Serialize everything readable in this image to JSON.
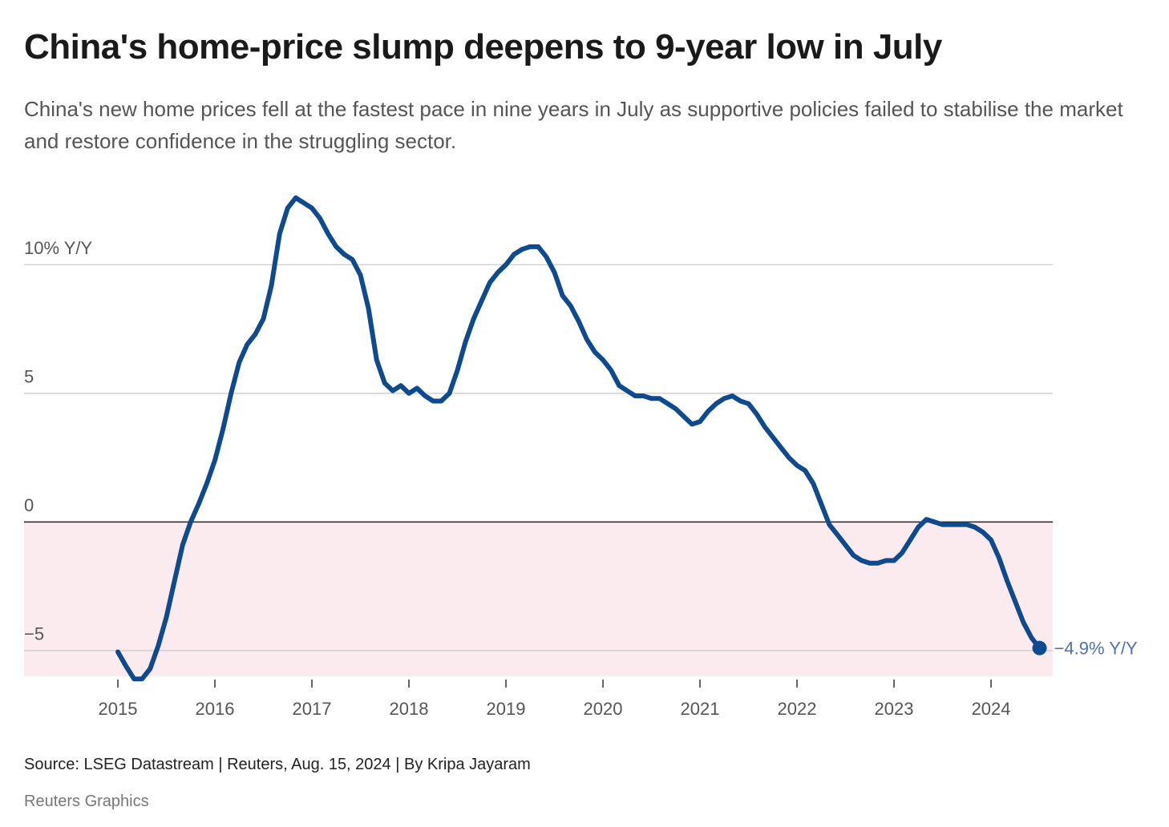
{
  "chart_data": {
    "type": "line",
    "title": "China's home-price slump deepens to 9-year low in July",
    "subtitle": "China's new home prices fell at the fastest pace in nine years in July as supportive policies failed to stabilise the market and restore confidence in the struggling sector.",
    "source": "Source: LSEG Datastream | Reuters, Aug. 15, 2024 | By Kripa Jayaram",
    "credit": "Reuters Graphics",
    "color": "#0f4a8f",
    "label_color": "#4f74a8",
    "negative_fill": "#fcebee",
    "zero_line_color": "#222222",
    "grid": true,
    "xlim": [
      2014.033,
      2024.636
    ],
    "ylim": [
      -6,
      13
    ],
    "xticks": [
      2015,
      2016,
      2017,
      2018,
      2019,
      2020,
      2021,
      2022,
      2023,
      2024
    ],
    "yticks": [
      {
        "value": -5,
        "label": "−5"
      },
      0,
      5,
      {
        "value": 10,
        "label": "10% Y/Y"
      }
    ],
    "x": [
      2015,
      2015.083,
      2015.167,
      2015.25,
      2015.333,
      2015.417,
      2015.5,
      2015.583,
      2015.667,
      2015.75,
      2015.833,
      2015.917,
      2016,
      2016.083,
      2016.167,
      2016.25,
      2016.333,
      2016.417,
      2016.5,
      2016.583,
      2016.667,
      2016.75,
      2016.833,
      2016.917,
      2017,
      2017.083,
      2017.167,
      2017.25,
      2017.333,
      2017.417,
      2017.5,
      2017.583,
      2017.667,
      2017.75,
      2017.833,
      2017.917,
      2018,
      2018.083,
      2018.167,
      2018.25,
      2018.333,
      2018.417,
      2018.5,
      2018.583,
      2018.667,
      2018.75,
      2018.833,
      2018.917,
      2019,
      2019.083,
      2019.167,
      2019.25,
      2019.333,
      2019.417,
      2019.5,
      2019.583,
      2019.667,
      2019.75,
      2019.833,
      2019.917,
      2020,
      2020.083,
      2020.167,
      2020.25,
      2020.333,
      2020.417,
      2020.5,
      2020.583,
      2020.667,
      2020.75,
      2020.833,
      2020.917,
      2021,
      2021.083,
      2021.167,
      2021.25,
      2021.333,
      2021.417,
      2021.5,
      2021.583,
      2021.667,
      2021.75,
      2021.833,
      2021.917,
      2022,
      2022.083,
      2022.167,
      2022.25,
      2022.333,
      2022.417,
      2022.5,
      2022.583,
      2022.667,
      2022.75,
      2022.833,
      2022.917,
      2023,
      2023.083,
      2023.167,
      2023.25,
      2023.333,
      2023.417,
      2023.5,
      2023.583,
      2023.667,
      2023.75,
      2023.833,
      2023.917,
      2024,
      2024.083,
      2024.167,
      2024.25,
      2024.333,
      2024.417,
      2024.5
    ],
    "values": [
      -5.05,
      -5.6,
      -6.1,
      -6.1,
      -5.7,
      -4.8,
      -3.7,
      -2.3,
      -0.9,
      0.0,
      0.7,
      1.5,
      2.4,
      3.6,
      5.0,
      6.2,
      6.9,
      7.3,
      7.9,
      9.2,
      11.2,
      12.2,
      12.6,
      12.4,
      12.2,
      11.8,
      11.2,
      10.7,
      10.4,
      10.2,
      9.6,
      8.3,
      6.3,
      5.4,
      5.1,
      5.3,
      5.0,
      5.2,
      4.9,
      4.7,
      4.7,
      5.0,
      5.9,
      7.0,
      7.9,
      8.6,
      9.3,
      9.7,
      10.0,
      10.4,
      10.6,
      10.7,
      10.7,
      10.3,
      9.7,
      8.8,
      8.4,
      7.8,
      7.1,
      6.6,
      6.3,
      5.9,
      5.3,
      5.1,
      4.9,
      4.9,
      4.8,
      4.8,
      4.6,
      4.4,
      4.1,
      3.8,
      3.9,
      4.3,
      4.6,
      4.8,
      4.9,
      4.7,
      4.6,
      4.2,
      3.7,
      3.3,
      2.9,
      2.5,
      2.2,
      2.0,
      1.5,
      0.7,
      -0.1,
      -0.5,
      -0.9,
      -1.3,
      -1.5,
      -1.6,
      -1.6,
      -1.5,
      -1.5,
      -1.2,
      -0.7,
      -0.2,
      0.1,
      0.0,
      -0.1,
      -0.1,
      -0.1,
      -0.1,
      -0.2,
      -0.4,
      -0.7,
      -1.4,
      -2.3,
      -3.1,
      -3.9,
      -4.5,
      -4.9
    ],
    "value_labels": [
      null,
      null,
      null,
      null,
      null,
      null,
      null,
      null,
      null,
      null,
      null,
      null,
      null,
      null,
      null,
      null,
      null,
      null,
      null,
      null,
      null,
      null,
      null,
      null,
      null,
      null,
      null,
      null,
      null,
      null,
      null,
      null,
      null,
      null,
      null,
      null,
      null,
      null,
      null,
      null,
      null,
      null,
      null,
      null,
      null,
      null,
      null,
      null,
      null,
      null,
      null,
      null,
      null,
      null,
      null,
      null,
      null,
      null,
      null,
      null,
      null,
      null,
      null,
      null,
      null,
      null,
      null,
      null,
      null,
      null,
      null,
      null,
      null,
      null,
      null,
      null,
      null,
      null,
      null,
      null,
      null,
      null,
      null,
      null,
      null,
      null,
      null,
      null,
      null,
      null,
      null,
      null,
      null,
      null,
      null,
      null,
      null,
      null,
      null,
      null,
      null,
      null,
      null,
      null,
      null,
      null,
      null,
      null,
      null,
      null,
      null,
      null,
      null,
      null,
      "−4.9% Y/Y"
    ]
  }
}
